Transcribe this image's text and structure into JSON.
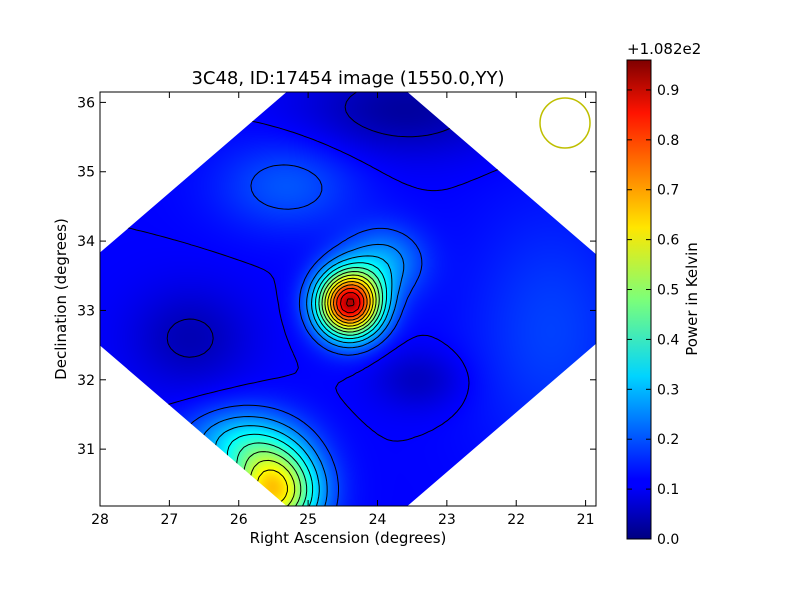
{
  "chart_data": {
    "type": "heatmap",
    "title": "3C48, ID:17454 image (1550.0,YY)",
    "xlabel": "Right Ascension (degrees)",
    "ylabel": "Declination (degrees)",
    "xlim": [
      28.0,
      20.85
    ],
    "ylim": [
      30.18,
      36.15
    ],
    "x_ticks": [
      "28",
      "27",
      "26",
      "25",
      "24",
      "23",
      "22",
      "21"
    ],
    "y_ticks": [
      "31",
      "32",
      "33",
      "34",
      "35",
      "36"
    ],
    "colormap": "jet",
    "colorbar": {
      "label": "Power in Kelvin",
      "offset_text": "+1.082e2",
      "range": [
        0.0,
        0.96
      ],
      "ticks": [
        "0.0",
        "0.1",
        "0.2",
        "0.3",
        "0.4",
        "0.5",
        "0.6",
        "0.7",
        "0.8",
        "0.9"
      ]
    },
    "grid": false,
    "beam_marker_color": "#bfbf00",
    "contour_color": "#000000",
    "peak": {
      "ra": 24.4,
      "dec": 33.1,
      "value": 0.96
    },
    "background_level": 0.12,
    "components": [
      {
        "ra": 24.4,
        "dec": 33.1,
        "sigma_ra": 0.32,
        "sigma_dec": 0.33,
        "amp": 0.78
      },
      {
        "ra": 23.9,
        "dec": 33.7,
        "sigma_ra": 0.4,
        "sigma_dec": 0.35,
        "amp": 0.14
      },
      {
        "ra": 25.5,
        "dec": 30.4,
        "sigma_ra": 0.45,
        "sigma_dec": 0.45,
        "amp": 0.52
      },
      {
        "ra": 26.0,
        "dec": 31.1,
        "sigma_ra": 0.55,
        "sigma_dec": 0.35,
        "amp": 0.18
      },
      {
        "ra": 25.3,
        "dec": 34.8,
        "sigma_ra": 0.7,
        "sigma_dec": 0.45,
        "amp": 0.08
      },
      {
        "ra": 26.7,
        "dec": 32.6,
        "sigma_ra": 0.6,
        "sigma_dec": 0.5,
        "amp": -0.07
      },
      {
        "ra": 23.4,
        "dec": 32.0,
        "sigma_ra": 0.45,
        "sigma_dec": 0.3,
        "amp": -0.06
      },
      {
        "ra": 23.6,
        "dec": 35.9,
        "sigma_ra": 1.0,
        "sigma_dec": 0.45,
        "amp": -0.09
      },
      {
        "ra": 21.5,
        "dec": 32.7,
        "sigma_ra": 0.8,
        "sigma_dec": 1.2,
        "amp": 0.06
      }
    ]
  }
}
